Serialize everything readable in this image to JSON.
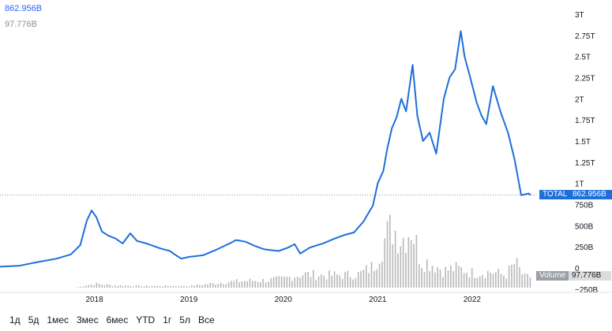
{
  "legend": {
    "total_value": "862.956B",
    "volume_value": "97.776B"
  },
  "tags": {
    "total_label": "TOTAL",
    "total_value": "862.956B",
    "volume_label": "Volume",
    "volume_value": "97.776B"
  },
  "toolbar": {
    "ranges": [
      "1д",
      "5д",
      "1мес",
      "3мес",
      "6мес",
      "YTD",
      "1г",
      "5л",
      "Все"
    ]
  },
  "colors": {
    "line": "#1e6fd9",
    "volume": "#b8b8b8",
    "grid": "#eef0f3",
    "axis_text": "#131722"
  },
  "chart_data": {
    "type": "line",
    "title": "",
    "xlabel": "",
    "ylabel": "",
    "x_ticks": [
      "2018",
      "2019",
      "2020",
      "2021",
      "2022"
    ],
    "y_ticks": [
      "3T",
      "2.75T",
      "2.5T",
      "2.25T",
      "2T",
      "1.75T",
      "1.5T",
      "1.25T",
      "1T",
      "750B",
      "500B",
      "250B",
      "0",
      "−250B"
    ],
    "ylim": [
      -250,
      3000
    ],
    "y_unit": "billions USD",
    "series": [
      {
        "name": "TOTAL",
        "kind": "line",
        "points": [
          [
            2017.0,
            15
          ],
          [
            2017.2,
            25
          ],
          [
            2017.4,
            70
          ],
          [
            2017.6,
            110
          ],
          [
            2017.75,
            160
          ],
          [
            2017.85,
            270
          ],
          [
            2017.92,
            560
          ],
          [
            2017.97,
            680
          ],
          [
            2018.02,
            600
          ],
          [
            2018.08,
            430
          ],
          [
            2018.15,
            380
          ],
          [
            2018.22,
            350
          ],
          [
            2018.3,
            290
          ],
          [
            2018.38,
            410
          ],
          [
            2018.45,
            320
          ],
          [
            2018.55,
            290
          ],
          [
            2018.7,
            230
          ],
          [
            2018.8,
            200
          ],
          [
            2018.85,
            160
          ],
          [
            2018.92,
            110
          ],
          [
            2019.0,
            130
          ],
          [
            2019.15,
            150
          ],
          [
            2019.3,
            220
          ],
          [
            2019.45,
            300
          ],
          [
            2019.5,
            330
          ],
          [
            2019.6,
            310
          ],
          [
            2019.7,
            260
          ],
          [
            2019.8,
            220
          ],
          [
            2019.95,
            200
          ],
          [
            2020.05,
            240
          ],
          [
            2020.12,
            280
          ],
          [
            2020.18,
            170
          ],
          [
            2020.28,
            240
          ],
          [
            2020.42,
            290
          ],
          [
            2020.55,
            350
          ],
          [
            2020.65,
            390
          ],
          [
            2020.75,
            420
          ],
          [
            2020.85,
            550
          ],
          [
            2020.95,
            740
          ],
          [
            2021.0,
            1000
          ],
          [
            2021.06,
            1150
          ],
          [
            2021.1,
            1400
          ],
          [
            2021.15,
            1650
          ],
          [
            2021.2,
            1780
          ],
          [
            2021.25,
            2000
          ],
          [
            2021.3,
            1850
          ],
          [
            2021.37,
            2400
          ],
          [
            2021.42,
            1800
          ],
          [
            2021.48,
            1500
          ],
          [
            2021.55,
            1600
          ],
          [
            2021.62,
            1350
          ],
          [
            2021.7,
            2000
          ],
          [
            2021.76,
            2250
          ],
          [
            2021.82,
            2350
          ],
          [
            2021.88,
            2800
          ],
          [
            2021.92,
            2500
          ],
          [
            2021.98,
            2250
          ],
          [
            2022.05,
            1950
          ],
          [
            2022.1,
            1800
          ],
          [
            2022.15,
            1700
          ],
          [
            2022.22,
            2150
          ],
          [
            2022.3,
            1850
          ],
          [
            2022.38,
            1600
          ],
          [
            2022.45,
            1280
          ],
          [
            2022.52,
            860
          ],
          [
            2022.6,
            880
          ],
          [
            2022.62,
            863
          ]
        ]
      },
      {
        "name": "Volume",
        "kind": "histogram",
        "points": [
          [
            2017.9,
            20
          ],
          [
            2018.0,
            35
          ],
          [
            2018.2,
            20
          ],
          [
            2018.5,
            15
          ],
          [
            2018.8,
            15
          ],
          [
            2019.0,
            15
          ],
          [
            2019.4,
            50
          ],
          [
            2019.6,
            60
          ],
          [
            2019.8,
            65
          ],
          [
            2020.0,
            80
          ],
          [
            2020.2,
            120
          ],
          [
            2020.4,
            110
          ],
          [
            2020.6,
            110
          ],
          [
            2020.8,
            120
          ],
          [
            2020.95,
            190
          ],
          [
            2021.05,
            400
          ],
          [
            2021.15,
            540
          ],
          [
            2021.25,
            430
          ],
          [
            2021.35,
            540
          ],
          [
            2021.45,
            240
          ],
          [
            2021.55,
            220
          ],
          [
            2021.7,
            150
          ],
          [
            2021.8,
            170
          ],
          [
            2021.9,
            160
          ],
          [
            2022.0,
            130
          ],
          [
            2022.2,
            140
          ],
          [
            2022.35,
            110
          ],
          [
            2022.45,
            220
          ],
          [
            2022.55,
            90
          ],
          [
            2022.62,
            98
          ]
        ]
      }
    ],
    "last_total": "862.956B",
    "last_volume": "97.776B",
    "grid": false
  }
}
